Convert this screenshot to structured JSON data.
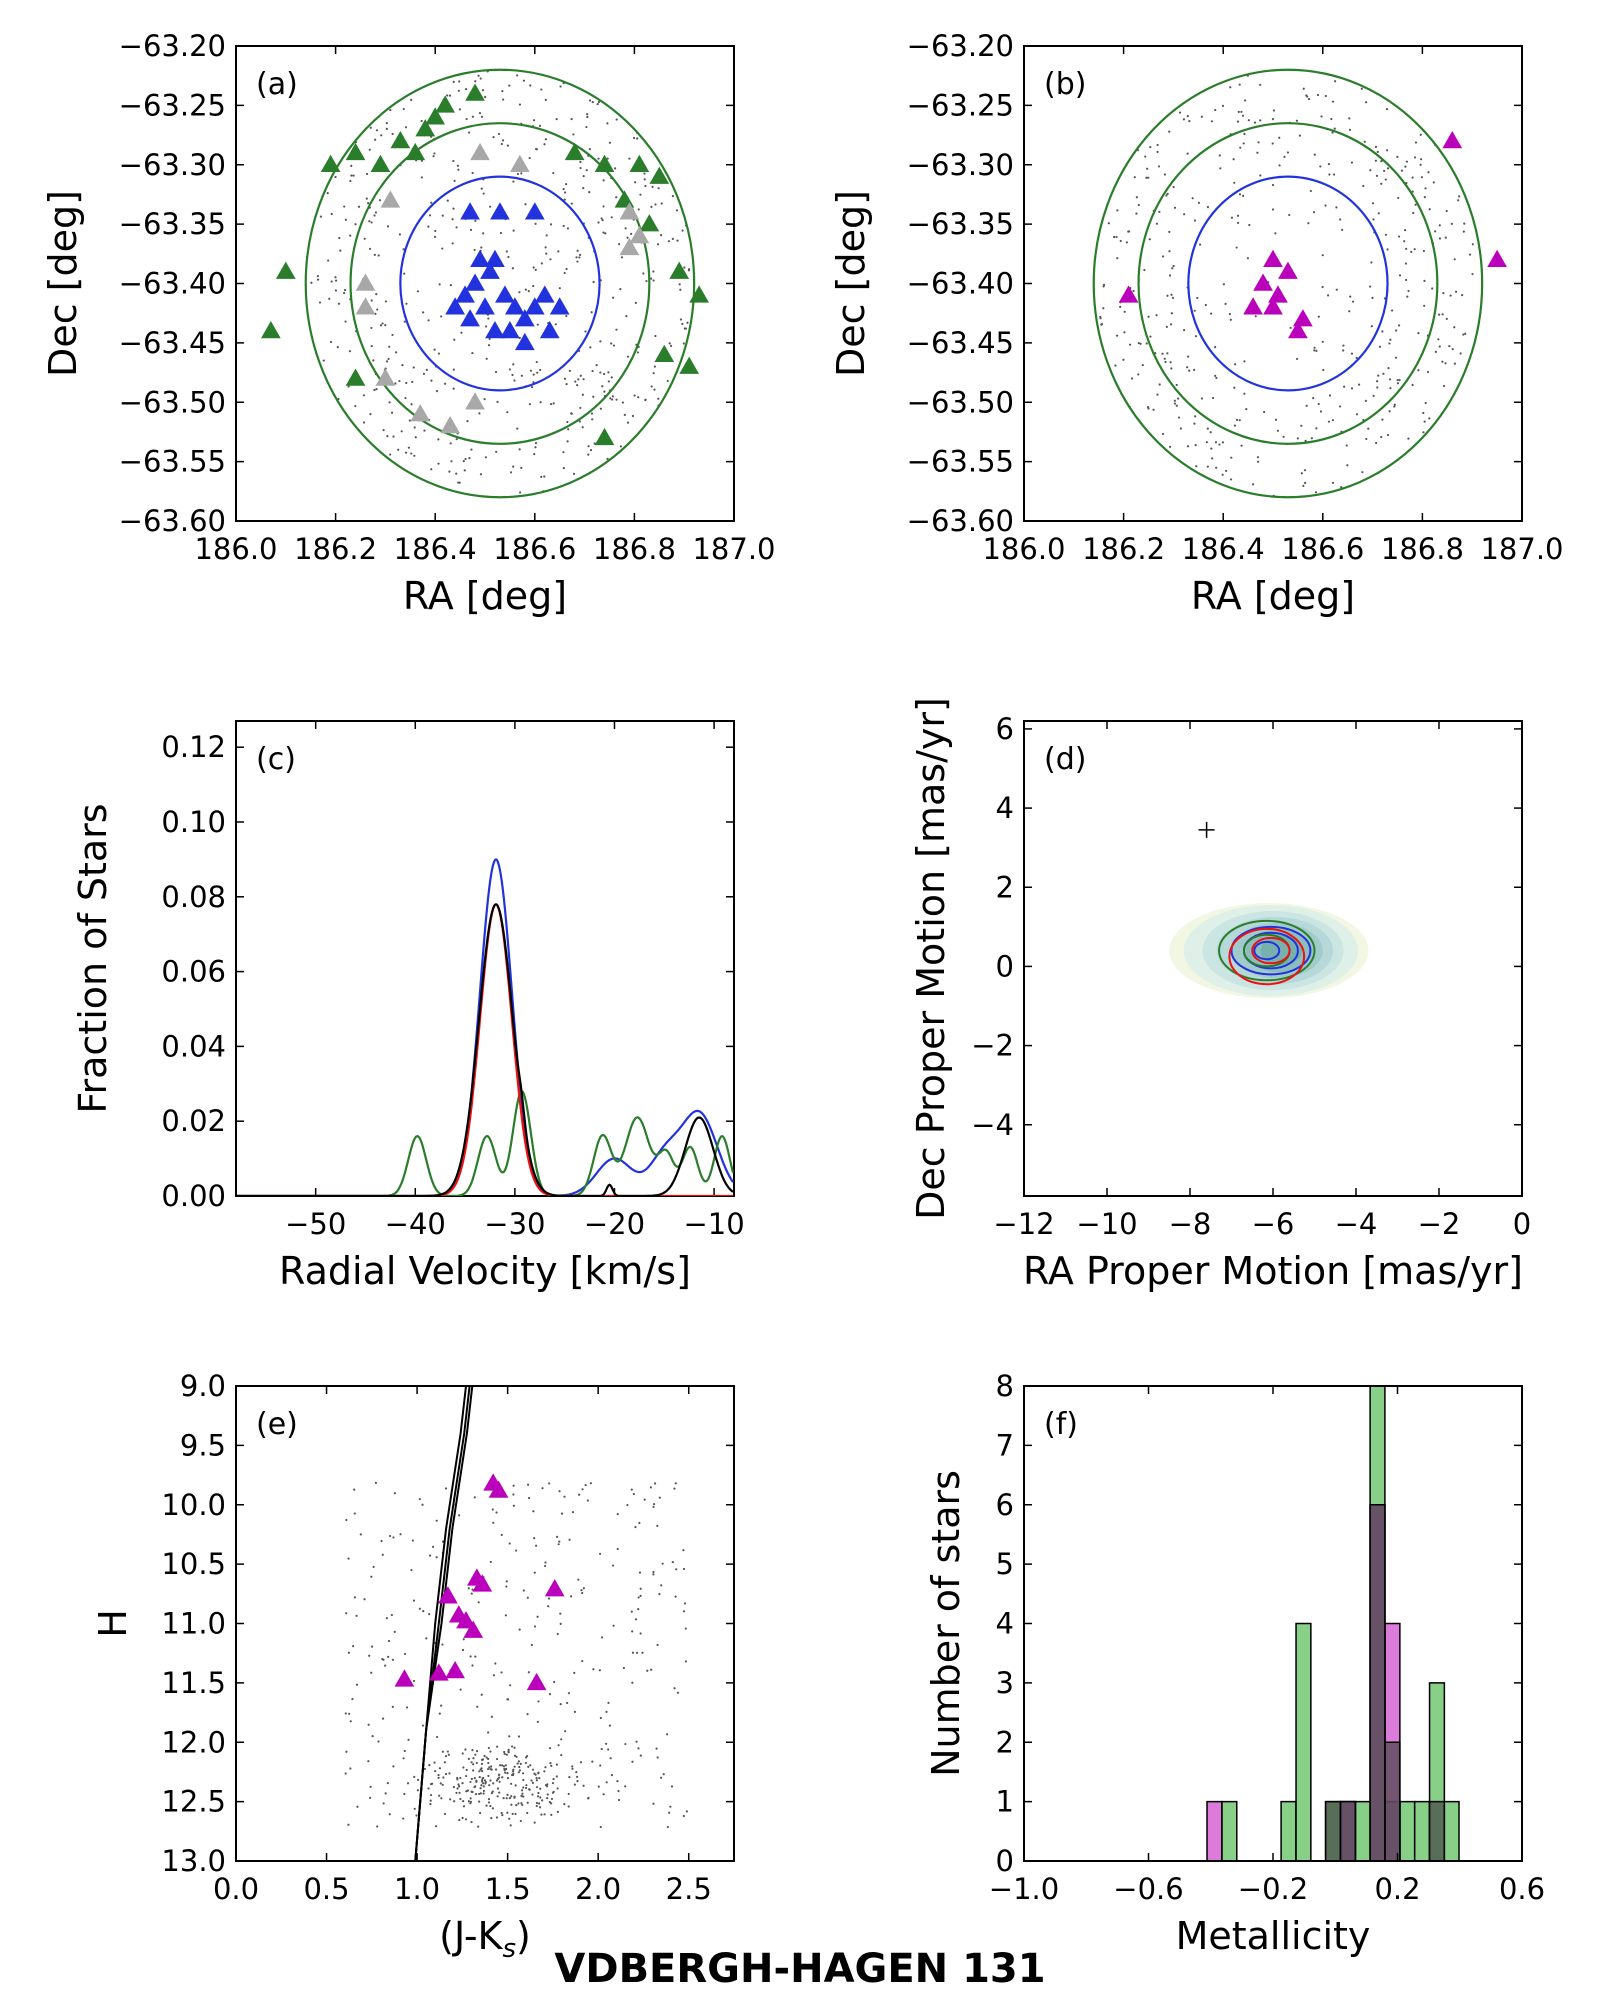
{
  "figure": {
    "title": "VDBERGH-HAGEN 131"
  },
  "colors": {
    "member": "#2233dd",
    "outer_ring": "#2a7d2a",
    "excluded": "#a8a8a8",
    "selected": "#bb00bb",
    "red": "#ee1111",
    "black": "#000000",
    "field_dot": "#555555"
  },
  "chart_data": [
    {
      "id": "a",
      "type": "scatter",
      "panel_label": "(a)",
      "xlabel": "RA [deg]",
      "ylabel": "Dec [deg]",
      "xlim": [
        186.0,
        187.0
      ],
      "ylim": [
        -63.6,
        -63.2
      ],
      "xticks": [
        "186.0",
        "186.2",
        "186.4",
        "186.6",
        "186.8",
        "187.0"
      ],
      "yticks": [
        "−63.20",
        "−63.25",
        "−63.30",
        "−63.35",
        "−63.40",
        "−63.45",
        "−63.50",
        "−63.55",
        "−63.60"
      ],
      "circles": [
        {
          "name": "inner",
          "center": [
            186.53,
            -63.4
          ],
          "r_ra": 0.2,
          "r_dec": 0.09,
          "color": "#2233dd"
        },
        {
          "name": "middle",
          "center": [
            186.53,
            -63.4
          ],
          "r_ra": 0.3,
          "r_dec": 0.135,
          "color": "#2a7d2a"
        },
        {
          "name": "outer",
          "center": [
            186.53,
            -63.4
          ],
          "r_ra": 0.39,
          "r_dec": 0.18,
          "color": "#2a7d2a"
        }
      ],
      "series": [
        {
          "marker": "triangle",
          "color": "#2233dd",
          "points": [
            [
              186.47,
              -63.34
            ],
            [
              186.53,
              -63.34
            ],
            [
              186.6,
              -63.34
            ],
            [
              186.49,
              -63.38
            ],
            [
              186.52,
              -63.38
            ],
            [
              186.48,
              -63.4
            ],
            [
              186.51,
              -63.39
            ],
            [
              186.46,
              -63.41
            ],
            [
              186.5,
              -63.42
            ],
            [
              186.54,
              -63.41
            ],
            [
              186.44,
              -63.42
            ],
            [
              186.47,
              -63.43
            ],
            [
              186.56,
              -63.42
            ],
            [
              186.58,
              -63.43
            ],
            [
              186.62,
              -63.41
            ],
            [
              186.6,
              -63.42
            ],
            [
              186.55,
              -63.44
            ],
            [
              186.63,
              -63.44
            ],
            [
              186.58,
              -63.45
            ],
            [
              186.52,
              -63.44
            ],
            [
              186.65,
              -63.42
            ]
          ]
        },
        {
          "marker": "triangle",
          "color": "#2a7d2a",
          "points": [
            [
              186.42,
              -63.25
            ],
            [
              186.48,
              -63.24
            ],
            [
              186.4,
              -63.26
            ],
            [
              186.38,
              -63.27
            ],
            [
              186.33,
              -63.28
            ],
            [
              186.36,
              -63.29
            ],
            [
              186.24,
              -63.29
            ],
            [
              186.29,
              -63.3
            ],
            [
              186.19,
              -63.3
            ],
            [
              186.68,
              -63.29
            ],
            [
              186.74,
              -63.3
            ],
            [
              186.81,
              -63.3
            ],
            [
              186.85,
              -63.31
            ],
            [
              186.78,
              -63.33
            ],
            [
              186.83,
              -63.35
            ],
            [
              186.89,
              -63.39
            ],
            [
              186.93,
              -63.41
            ],
            [
              186.1,
              -63.39
            ],
            [
              186.07,
              -63.44
            ],
            [
              186.86,
              -63.46
            ],
            [
              186.91,
              -63.47
            ],
            [
              186.24,
              -63.48
            ],
            [
              186.74,
              -63.53
            ]
          ]
        },
        {
          "marker": "triangle",
          "color": "#a8a8a8",
          "points": [
            [
              186.49,
              -63.29
            ],
            [
              186.57,
              -63.3
            ],
            [
              186.31,
              -63.33
            ],
            [
              186.26,
              -63.4
            ],
            [
              186.26,
              -63.42
            ],
            [
              186.79,
              -63.34
            ],
            [
              186.81,
              -63.36
            ],
            [
              186.79,
              -63.37
            ],
            [
              186.3,
              -63.48
            ],
            [
              186.37,
              -63.51
            ],
            [
              186.43,
              -63.52
            ],
            [
              186.48,
              -63.5
            ]
          ]
        }
      ]
    },
    {
      "id": "b",
      "type": "scatter",
      "panel_label": "(b)",
      "xlabel": "RA [deg]",
      "ylabel": "Dec [deg]",
      "xlim": [
        186.0,
        187.0
      ],
      "ylim": [
        -63.6,
        -63.2
      ],
      "xticks": [
        "186.0",
        "186.2",
        "186.4",
        "186.6",
        "186.8",
        "187.0"
      ],
      "yticks": [
        "−63.20",
        "−63.25",
        "−63.30",
        "−63.35",
        "−63.40",
        "−63.45",
        "−63.50",
        "−63.55",
        "−63.60"
      ],
      "circles": [
        {
          "name": "inner",
          "center": [
            186.53,
            -63.4
          ],
          "r_ra": 0.2,
          "r_dec": 0.09,
          "color": "#2233dd"
        },
        {
          "name": "middle",
          "center": [
            186.53,
            -63.4
          ],
          "r_ra": 0.3,
          "r_dec": 0.135,
          "color": "#2a7d2a"
        },
        {
          "name": "outer",
          "center": [
            186.53,
            -63.4
          ],
          "r_ra": 0.39,
          "r_dec": 0.18,
          "color": "#2a7d2a"
        }
      ],
      "series": [
        {
          "marker": "triangle",
          "color": "#bb00bb",
          "points": [
            [
              186.5,
              -63.38
            ],
            [
              186.53,
              -63.39
            ],
            [
              186.48,
              -63.4
            ],
            [
              186.51,
              -63.41
            ],
            [
              186.46,
              -63.42
            ],
            [
              186.5,
              -63.42
            ],
            [
              186.56,
              -63.43
            ],
            [
              186.55,
              -63.44
            ],
            [
              186.21,
              -63.41
            ],
            [
              186.86,
              -63.28
            ],
            [
              186.95,
              -63.38
            ]
          ]
        }
      ]
    },
    {
      "id": "c",
      "type": "line",
      "panel_label": "(c)",
      "xlabel": "Radial Velocity [km/s]",
      "ylabel": "Fraction of Stars",
      "xlim": [
        -58,
        -8
      ],
      "ylim": [
        0,
        0.127
      ],
      "xticks": [
        -50,
        -40,
        -30,
        -20,
        -10
      ],
      "yticks": [
        "0.00",
        "0.02",
        "0.04",
        "0.06",
        "0.08",
        "0.10",
        "0.12"
      ],
      "series": [
        {
          "color": "#2233dd",
          "components": [
            [
              -31.9,
              1.6,
              0.09
            ],
            [
              -20,
              1.8,
              0.01
            ],
            [
              -11.5,
              1.8,
              0.022
            ],
            [
              -15,
              1.5,
              0.01
            ]
          ]
        },
        {
          "color": "#2a7d2a",
          "components": [
            [
              -39.8,
              0.9,
              0.016
            ],
            [
              -32.8,
              0.9,
              0.016
            ],
            [
              -29.3,
              0.9,
              0.028
            ],
            [
              -21.2,
              0.9,
              0.016
            ],
            [
              -17.7,
              1.2,
              0.021
            ],
            [
              -14.8,
              0.8,
              0.011
            ],
            [
              -12.4,
              0.8,
              0.013
            ],
            [
              -9.2,
              0.8,
              0.016
            ]
          ]
        },
        {
          "color": "#ee1111",
          "components": [
            [
              -31.9,
              1.6,
              0.078
            ]
          ]
        },
        {
          "color": "#000000",
          "components": [
            [
              -31.9,
              1.7,
              0.078
            ],
            [
              -11.5,
              1.4,
              0.021
            ],
            [
              -20.5,
              0.3,
              0.003
            ],
            [
              -29.3,
              0.3,
              0.003
            ]
          ]
        }
      ]
    },
    {
      "id": "d",
      "type": "contour",
      "panel_label": "(d)",
      "xlabel": "RA Proper Motion [mas/yr]",
      "ylabel": "Dec Proper Motion [mas/yr]",
      "xlim": [
        -12,
        0
      ],
      "ylim": [
        -5.8,
        6.2
      ],
      "xticks": [
        "−12",
        "−10",
        "−8",
        "−6",
        "−4",
        "−2",
        "0"
      ],
      "yticks": [
        "−4",
        "−2",
        "0",
        "2",
        "4",
        "6"
      ],
      "error_cross": [
        -7.6,
        3.45
      ],
      "center": [
        -6.1,
        0.4
      ]
    },
    {
      "id": "e",
      "type": "scatter",
      "panel_label": "(e)",
      "xlabel": "(J-K",
      "xlabel_sub": "s",
      "xlabel_close": ")",
      "ylabel": "H",
      "xlim": [
        0.0,
        2.75
      ],
      "ylim": [
        13.0,
        9.0
      ],
      "xticks": [
        "0.0",
        "0.5",
        "1.0",
        "1.5",
        "2.0",
        "2.5"
      ],
      "yticks": [
        "9.0",
        "9.5",
        "10.0",
        "10.5",
        "11.0",
        "11.5",
        "12.0",
        "12.5",
        "13.0"
      ],
      "isochrone": [
        [
          0.99,
          13.0
        ],
        [
          1.05,
          11.9
        ],
        [
          1.1,
          11.0
        ],
        [
          1.16,
          10.2
        ],
        [
          1.24,
          9.4
        ],
        [
          1.27,
          9.0
        ]
      ],
      "series": [
        {
          "marker": "triangle",
          "color": "#bb00bb",
          "points": [
            [
              1.42,
              9.82
            ],
            [
              1.45,
              9.88
            ],
            [
              1.33,
              10.62
            ],
            [
              1.36,
              10.67
            ],
            [
              1.76,
              10.71
            ],
            [
              1.17,
              10.77
            ],
            [
              1.23,
              10.93
            ],
            [
              1.27,
              10.98
            ],
            [
              1.31,
              11.06
            ],
            [
              0.93,
              11.47
            ],
            [
              1.12,
              11.42
            ],
            [
              1.21,
              11.4
            ],
            [
              1.66,
              11.5
            ]
          ]
        }
      ]
    },
    {
      "id": "f",
      "type": "bar",
      "panel_label": "(f)",
      "xlabel": "Metallicity",
      "ylabel": "Number of stars",
      "xlim": [
        -1.0,
        0.6
      ],
      "ylim": [
        0,
        8
      ],
      "xticks": [
        "−1.0",
        "−0.6",
        "−0.2",
        "0.2",
        "0.6"
      ],
      "yticks": [
        "0",
        "1",
        "2",
        "3",
        "4",
        "5",
        "6",
        "7",
        "8"
      ],
      "bin_width": 0.0476,
      "series": [
        {
          "color": "#55bb55",
          "bins": [
            [
              -0.364,
              1
            ],
            [
              -0.174,
              1
            ],
            [
              -0.126,
              4
            ],
            [
              -0.031,
              1
            ],
            [
              0.017,
              1
            ],
            [
              0.065,
              1
            ],
            [
              0.112,
              8
            ],
            [
              0.16,
              1
            ],
            [
              0.208,
              1
            ],
            [
              0.255,
              1
            ],
            [
              0.303,
              3
            ],
            [
              0.35,
              1
            ]
          ]
        },
        {
          "color": "#cc44cc",
          "bins": [
            [
              -0.412,
              1
            ],
            [
              0.017,
              1
            ],
            [
              0.112,
              6
            ],
            [
              0.16,
              4
            ]
          ]
        },
        {
          "color": "#444444",
          "bins": [
            [
              -0.031,
              1
            ],
            [
              0.017,
              1
            ],
            [
              0.112,
              6
            ],
            [
              0.16,
              2
            ],
            [
              0.303,
              1
            ]
          ]
        }
      ]
    }
  ]
}
